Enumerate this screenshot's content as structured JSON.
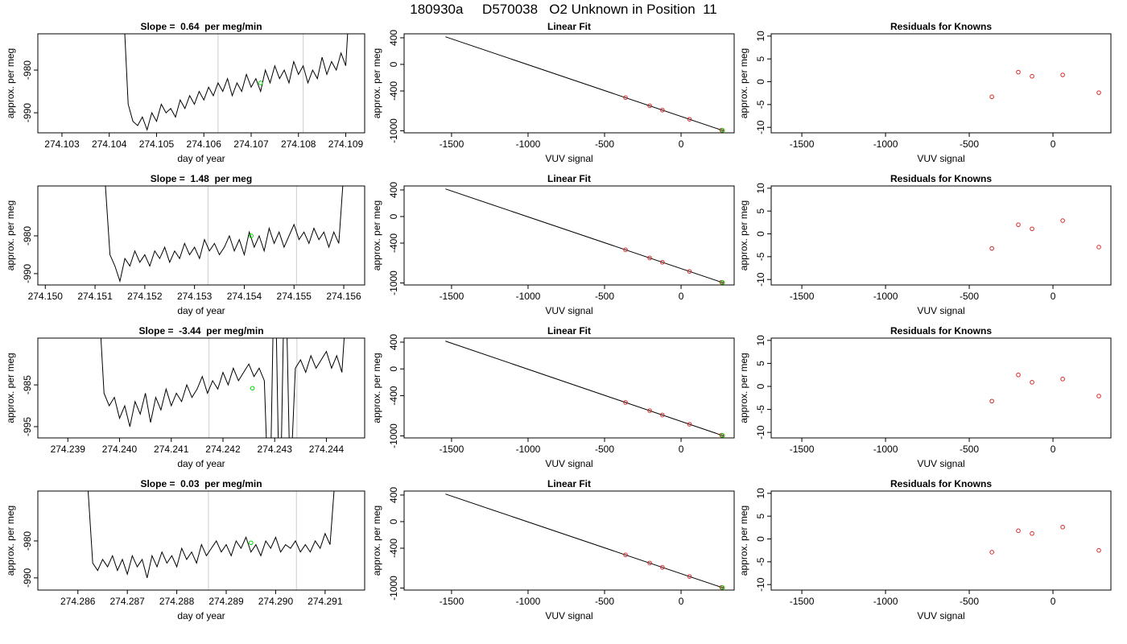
{
  "title": "180930a     D570038   O2 Unknown in Position  11",
  "chart_data": [
    {
      "type": "line",
      "title": "Slope =  0.64  per meg/min",
      "xlabel": "day of year",
      "ylabel": "approx. per meg",
      "xlim": [
        274.10249,
        274.1094
      ],
      "ylim": [
        -994.7,
        -971.5
      ],
      "xticks": [
        274.103,
        274.104,
        274.105,
        274.106,
        274.107,
        274.108,
        274.109
      ],
      "yticks": [
        -980,
        -990
      ],
      "vlines": [
        274.1063,
        274.1081
      ],
      "vline_color": "#cccccc",
      "series": [
        {
          "style": "line",
          "color": "#000000",
          "x": [
            274.1043,
            274.1044,
            274.1045,
            274.1046,
            274.1047,
            274.1048,
            274.1049,
            274.105,
            274.1051,
            274.1052,
            274.1053,
            274.1054,
            274.1055,
            274.1056,
            274.1057,
            274.1058,
            274.1059,
            274.106,
            274.1061,
            274.1062,
            274.1063,
            274.1064,
            274.1065,
            274.1066,
            274.1067,
            274.1068,
            274.1069,
            274.107,
            274.1071,
            274.1072,
            274.1073,
            274.1074,
            274.1075,
            274.1076,
            274.1077,
            274.1078,
            274.1079,
            274.108,
            274.1081,
            274.1082,
            274.1083,
            274.1084,
            274.1085,
            274.1086,
            274.1087,
            274.1088,
            274.1089,
            274.109,
            274.1091
          ],
          "values": [
            -965,
            -988,
            -992,
            -993,
            -991,
            -994,
            -990,
            -992,
            -988,
            -990,
            -989,
            -991,
            -987,
            -989,
            -986,
            -988,
            -985,
            -987,
            -984,
            -986,
            -983,
            -985,
            -982,
            -986,
            -983,
            -985,
            -981,
            -984,
            -982,
            -985,
            -980,
            -983,
            -979,
            -982,
            -980,
            -983,
            -978,
            -981,
            -979,
            -983,
            -980,
            -982,
            -977,
            -981,
            -978,
            -980,
            -976,
            -979,
            -960
          ]
        },
        {
          "style": "points",
          "color": "#00dd00",
          "x": [
            274.1072
          ],
          "values": [
            -983
          ]
        }
      ]
    },
    {
      "type": "scatter",
      "title": "Linear Fit",
      "xlabel": "VUV signal",
      "ylabel": "approx. per meg",
      "xlim": [
        -1810,
        347
      ],
      "ylim": [
        -1030,
        460
      ],
      "xticks": [
        -1500,
        -1000,
        -500,
        0
      ],
      "yticks": [
        400,
        0,
        -400,
        -1000
      ],
      "series": [
        {
          "style": "line",
          "color": "#000000",
          "x": [
            -1540,
            280
          ],
          "values": [
            415,
            -1001
          ]
        },
        {
          "style": "points",
          "color": "#d62728",
          "x": [
            -363,
            -205,
            -122,
            55,
            265
          ],
          "values": [
            -501,
            -623,
            -688,
            -826,
            -989
          ]
        },
        {
          "style": "points",
          "color": "#00dd00",
          "x": [
            272
          ],
          "values": [
            -993
          ]
        }
      ]
    },
    {
      "type": "scatter",
      "title": "Residuals for Knowns",
      "xlabel": "VUV signal",
      "ylabel": "approx. per meg",
      "xlim": [
        -1683,
        346
      ],
      "ylim": [
        -11.2,
        10.5
      ],
      "xticks": [
        -1500,
        -1000,
        -500,
        0
      ],
      "yticks": [
        10,
        5,
        0,
        -5,
        -10
      ],
      "series": [
        {
          "style": "points",
          "color": "#d62728",
          "x": [
            -365,
            -207,
            -125,
            58,
            274
          ],
          "values": [
            -3.3,
            2.1,
            1.2,
            1.5,
            -2.4
          ]
        }
      ]
    },
    {
      "type": "line",
      "title": "Slope =  1.48  per meg",
      "xlabel": "day of year",
      "ylabel": "approx. per meg",
      "xlim": [
        274.14985,
        274.15642
      ],
      "ylim": [
        -993,
        -966.8
      ],
      "xticks": [
        {
          "value": 274.15,
          "label": "274.150"
        },
        274.151,
        274.152,
        274.153,
        274.154,
        274.155,
        274.156
      ],
      "yticks": [
        -980,
        -990
      ],
      "vlines": [
        274.15327,
        274.15505
      ],
      "vline_color": "#cccccc",
      "series": [
        {
          "style": "line",
          "color": "#000000",
          "x": [
            274.1512,
            274.1513,
            274.1514,
            274.1515,
            274.1516,
            274.1517,
            274.1518,
            274.1519,
            274.152,
            274.1521,
            274.1522,
            274.1523,
            274.1524,
            274.1525,
            274.1526,
            274.1527,
            274.1528,
            274.1529,
            274.153,
            274.1531,
            274.1532,
            274.1533,
            274.1534,
            274.1535,
            274.1536,
            274.1537,
            274.1538,
            274.1539,
            274.154,
            274.1541,
            274.1542,
            274.1543,
            274.1544,
            274.1545,
            274.1546,
            274.1547,
            274.1548,
            274.1549,
            274.155,
            274.1551,
            274.1552,
            274.1553,
            274.1554,
            274.1555,
            274.1556,
            274.1557,
            274.1558,
            274.1559,
            274.156
          ],
          "values": [
            -965,
            -985,
            -988,
            -992,
            -986,
            -988,
            -984,
            -987,
            -985,
            -988,
            -984,
            -986,
            -983,
            -987,
            -984,
            -986,
            -982,
            -985,
            -983,
            -986,
            -981,
            -984,
            -982,
            -985,
            -983,
            -980,
            -984,
            -981,
            -985,
            -979,
            -983,
            -980,
            -984,
            -978,
            -982,
            -979,
            -983,
            -980,
            -977,
            -981,
            -979,
            -982,
            -978,
            -981,
            -979,
            -983,
            -979,
            -982,
            -963
          ]
        },
        {
          "style": "points",
          "color": "#00dd00",
          "x": [
            274.15414
          ],
          "values": [
            -980
          ]
        }
      ]
    },
    {
      "type": "scatter",
      "title": "Linear Fit",
      "xlabel": "VUV signal",
      "ylabel": "approx. per meg",
      "xlim": [
        -1810,
        347
      ],
      "ylim": [
        -1030,
        460
      ],
      "xticks": [
        -1500,
        -1000,
        -500,
        0
      ],
      "yticks": [
        400,
        0,
        -400,
        -1000
      ],
      "series": [
        {
          "style": "line",
          "color": "#000000",
          "x": [
            -1540,
            280
          ],
          "values": [
            415,
            -1001
          ]
        },
        {
          "style": "points",
          "color": "#d62728",
          "x": [
            -363,
            -205,
            -122,
            55,
            265
          ],
          "values": [
            -501,
            -623,
            -688,
            -826,
            -989
          ]
        },
        {
          "style": "points",
          "color": "#00dd00",
          "x": [
            272
          ],
          "values": [
            -993
          ]
        }
      ]
    },
    {
      "type": "scatter",
      "title": "Residuals for Knowns",
      "xlabel": "VUV signal",
      "ylabel": "approx. per meg",
      "xlim": [
        -1683,
        346
      ],
      "ylim": [
        -11.2,
        10.5
      ],
      "xticks": [
        -1500,
        -1000,
        -500,
        0
      ],
      "yticks": [
        10,
        5,
        0,
        -5,
        -10
      ],
      "series": [
        {
          "style": "points",
          "color": "#d62728",
          "x": [
            -365,
            -207,
            -125,
            58,
            274
          ],
          "values": [
            -3.2,
            2,
            1.1,
            2.9,
            -2.9
          ]
        }
      ]
    },
    {
      "type": "line",
      "title": "Slope =  -3.44  per meg/min",
      "xlabel": "day of year",
      "ylabel": "approx. per meg",
      "xlim": [
        274.23842,
        274.24474
      ],
      "ylim": [
        -997.7,
        -973.8
      ],
      "xticks": [
        274.239,
        {
          "value": 274.24,
          "label": "274.240"
        },
        274.241,
        274.242,
        274.243,
        274.244
      ],
      "yticks": [
        -985,
        -995
      ],
      "vlines": [
        274.24173,
        274.24343
      ],
      "vline_color": "#cccccc",
      "series": [
        {
          "style": "line",
          "color": "#000000",
          "x": [
            274.2396,
            274.2397,
            274.2398,
            274.2399,
            274.24,
            274.2401,
            274.2402,
            274.2403,
            274.2404,
            274.2405,
            274.2406,
            274.2407,
            274.2408,
            274.2409,
            274.241,
            274.2411,
            274.2412,
            274.2413,
            274.2414,
            274.2415,
            274.2416,
            274.2417,
            274.2418,
            274.2419,
            274.242,
            274.2421,
            274.2422,
            274.2423,
            274.2424,
            274.2425,
            274.2426,
            274.2427,
            274.2428,
            274.2429,
            274.243,
            274.2431,
            274.2432,
            274.2433,
            274.2434,
            274.2435,
            274.2436,
            274.2437,
            274.2438,
            274.2439,
            274.244,
            274.2441,
            274.2442,
            274.2443,
            274.2444
          ],
          "values": [
            -965,
            -987,
            -990,
            -988,
            -993,
            -990,
            -995,
            -989,
            -992,
            -987,
            -994,
            -988,
            -991,
            -986,
            -990,
            -987,
            -989,
            -985,
            -988,
            -986,
            -983,
            -987,
            -984,
            -986,
            -982,
            -985,
            -981,
            -984,
            -982,
            -980,
            -983,
            -981,
            -984,
            -1020,
            -950,
            -1020,
            -950,
            -1010,
            -981,
            -979,
            -982,
            -978,
            -981,
            -979,
            -977,
            -981,
            -978,
            -982,
            -963
          ]
        },
        {
          "style": "points",
          "color": "#00dd00",
          "x": [
            274.24257
          ],
          "values": [
            -985.8
          ]
        }
      ]
    },
    {
      "type": "scatter",
      "title": "Linear Fit",
      "xlabel": "VUV signal",
      "ylabel": "approx. per meg",
      "xlim": [
        -1810,
        347
      ],
      "ylim": [
        -1030,
        460
      ],
      "xticks": [
        -1500,
        -1000,
        -500,
        0
      ],
      "yticks": [
        400,
        0,
        -400,
        -1000
      ],
      "series": [
        {
          "style": "line",
          "color": "#000000",
          "x": [
            -1540,
            280
          ],
          "values": [
            415,
            -1001
          ]
        },
        {
          "style": "points",
          "color": "#d62728",
          "x": [
            -363,
            -205,
            -122,
            55,
            265
          ],
          "values": [
            -501,
            -623,
            -688,
            -826,
            -989
          ]
        },
        {
          "style": "points",
          "color": "#00dd00",
          "x": [
            272
          ],
          "values": [
            -993
          ]
        }
      ]
    },
    {
      "type": "scatter",
      "title": "Residuals for Knowns",
      "xlabel": "VUV signal",
      "ylabel": "approx. per meg",
      "xlim": [
        -1683,
        346
      ],
      "ylim": [
        -11.2,
        10.5
      ],
      "xticks": [
        -1500,
        -1000,
        -500,
        0
      ],
      "yticks": [
        10,
        5,
        0,
        -5,
        -10
      ],
      "series": [
        {
          "style": "points",
          "color": "#d62728",
          "x": [
            -365,
            -207,
            -125,
            58,
            274
          ],
          "values": [
            -3.2,
            2.5,
            0.9,
            1.6,
            -2.1
          ]
        }
      ]
    },
    {
      "type": "line",
      "title": "Slope =  0.03  per meg/min",
      "xlabel": "day of year",
      "ylabel": "approx. per meg",
      "xlim": [
        274.28519,
        274.2918
      ],
      "ylim": [
        -993.3,
        -966.5
      ],
      "xticks": [
        274.286,
        274.287,
        274.288,
        274.289,
        {
          "value": 274.29,
          "label": "274.290"
        },
        274.291
      ],
      "yticks": [
        -980,
        -990
      ],
      "vlines": [
        274.28864,
        274.29042
      ],
      "vline_color": "#cccccc",
      "series": [
        {
          "style": "line",
          "color": "#000000",
          "x": [
            274.2862,
            274.2863,
            274.2864,
            274.2865,
            274.2866,
            274.2867,
            274.2868,
            274.2869,
            274.287,
            274.2871,
            274.2872,
            274.2873,
            274.2874,
            274.2875,
            274.2876,
            274.2877,
            274.2878,
            274.2879,
            274.288,
            274.2881,
            274.2882,
            274.2883,
            274.2884,
            274.2885,
            274.2886,
            274.2887,
            274.2888,
            274.2889,
            274.289,
            274.2891,
            274.2892,
            274.2893,
            274.2894,
            274.2895,
            274.2896,
            274.2897,
            274.2898,
            274.2899,
            274.29,
            274.2901,
            274.2902,
            274.2903,
            274.2904,
            274.2905,
            274.2906,
            274.2907,
            274.2908,
            274.2909,
            274.291,
            274.2911,
            274.2912
          ],
          "values": [
            -965,
            -986,
            -988,
            -985,
            -987,
            -984,
            -988,
            -985,
            -989,
            -984,
            -987,
            -985,
            -990,
            -984,
            -987,
            -983,
            -986,
            -984,
            -987,
            -982,
            -985,
            -983,
            -986,
            -981,
            -984,
            -982,
            -980,
            -983,
            -981,
            -984,
            -980,
            -982,
            -979,
            -983,
            -981,
            -984,
            -980,
            -982,
            -979,
            -983,
            -981,
            -982,
            -980,
            -983,
            -981,
            -983,
            -980,
            -982,
            -978,
            -981,
            -963
          ]
        },
        {
          "style": "points",
          "color": "#00dd00",
          "x": [
            274.2895
          ],
          "values": [
            -980.5
          ]
        }
      ]
    },
    {
      "type": "scatter",
      "title": "Linear Fit",
      "xlabel": "VUV signal",
      "ylabel": "approx. per meg",
      "xlim": [
        -1810,
        347
      ],
      "ylim": [
        -1030,
        460
      ],
      "xticks": [
        -1500,
        -1000,
        -500,
        0
      ],
      "yticks": [
        400,
        0,
        -400,
        -1000
      ],
      "series": [
        {
          "style": "line",
          "color": "#000000",
          "x": [
            -1540,
            280
          ],
          "values": [
            415,
            -1001
          ]
        },
        {
          "style": "points",
          "color": "#d62728",
          "x": [
            -363,
            -205,
            -122,
            55,
            265
          ],
          "values": [
            -501,
            -623,
            -688,
            -826,
            -989
          ]
        },
        {
          "style": "points",
          "color": "#00dd00",
          "x": [
            272
          ],
          "values": [
            -993
          ]
        }
      ]
    },
    {
      "type": "scatter",
      "title": "Residuals for Knowns",
      "xlabel": "VUV signal",
      "ylabel": "approx. per meg",
      "xlim": [
        -1683,
        346
      ],
      "ylim": [
        -11.2,
        10.5
      ],
      "xticks": [
        -1500,
        -1000,
        -500,
        0
      ],
      "yticks": [
        10,
        5,
        0,
        -5,
        -10
      ],
      "series": [
        {
          "style": "points",
          "color": "#d62728",
          "x": [
            -365,
            -207,
            -125,
            58,
            274
          ],
          "values": [
            -2.9,
            1.8,
            1.2,
            2.6,
            -2.5
          ]
        }
      ]
    }
  ]
}
